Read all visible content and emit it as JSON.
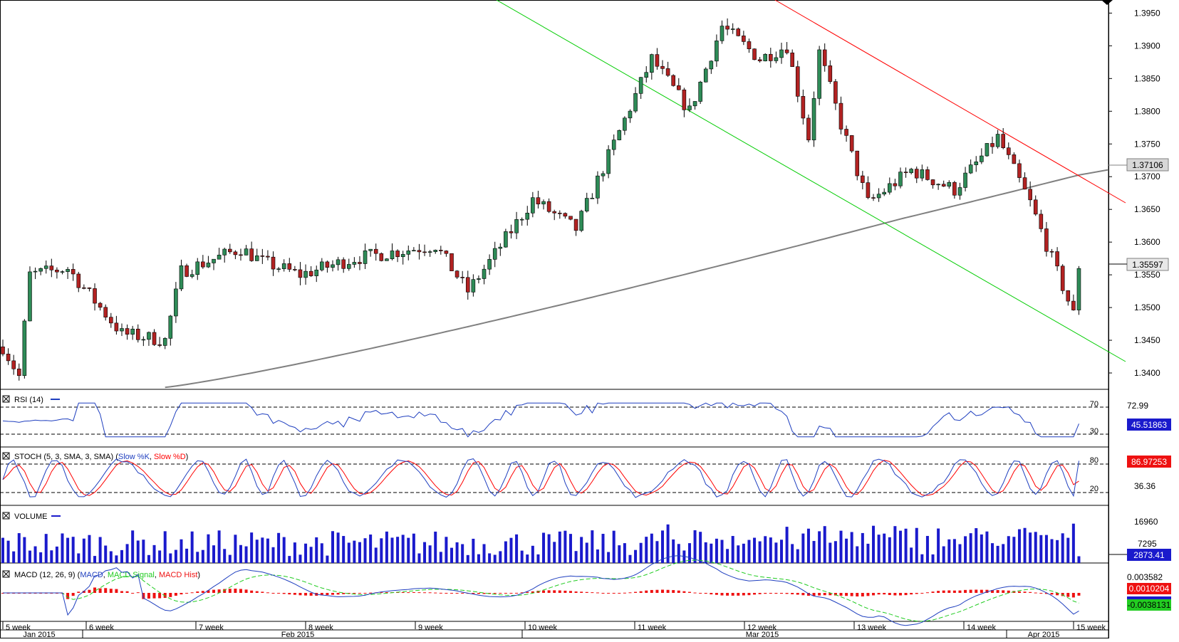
{
  "colors": {
    "bull": "#2e8b57",
    "bear": "#b22222",
    "grid": "#000000",
    "ma": "#808080",
    "support": "#00cc00",
    "resistance": "#ff0000",
    "rsi": "#1f3fbf",
    "stoch_k": "#1f3fbf",
    "stoch_d": "#ff0000",
    "volume": "#1a1acc",
    "macd": "#1f3fbf",
    "macd_signal": "#22cc22",
    "macd_hist": "#ee1111",
    "badge": "#1a1acc"
  },
  "price_panel": {
    "y_ticks": [
      "1.3950",
      "1.3900",
      "1.3850",
      "1.3800",
      "1.3750",
      "1.3700",
      "1.3650",
      "1.3600",
      "1.3550",
      "1.3500",
      "1.3450",
      "1.3400"
    ],
    "ma_label": "1.37106",
    "last_price_label": "1.35597"
  },
  "rsi_panel": {
    "title": "RSI (14)",
    "level_high": "70",
    "level_low": "30",
    "top_label": "72.99",
    "value_label": "45.51863"
  },
  "stoch_panel": {
    "title_prefix": "STOCH (5, 3, SMA, 3, SMA) (",
    "k_name": "Slow %K",
    "separator": ", ",
    "d_name": "Slow %D",
    "title_suffix": ")",
    "level_high": "80",
    "level_low": "20",
    "mid_label": "36.36",
    "value_label": "86.97253"
  },
  "volume_panel": {
    "title": "VOLUME",
    "top_label": "16960",
    "mid_label": "7295",
    "value_label": "2873.41"
  },
  "macd_panel": {
    "title_prefix": "MACD (12, 26, 9) (",
    "macd_name": "MACD",
    "separator": ", ",
    "signal_name": "MACD Signal",
    "hist_name": "MACD Hist",
    "title_suffix": ")",
    "top_label": "0.003582",
    "hist_label": "0.0010204",
    "value_label": "-0.0038131"
  },
  "x_axis": {
    "weeks": [
      "5 week",
      "6 week",
      "7 week",
      "8 week",
      "9 week",
      "10 week",
      "11 week",
      "12 week",
      "13 week",
      "14 week",
      "15 week"
    ],
    "months": [
      "Jan 2015",
      "Feb 2015",
      "Mar 2015",
      "Apr 2015"
    ]
  },
  "chart_data": {
    "type": "candlestick",
    "y_range": [
      1.3375,
      1.397
    ],
    "bars_count": 200,
    "open": 1.344,
    "close": 1.35597,
    "high": 1.395,
    "low": 1.3385,
    "anchors": [
      [
        0,
        1.344
      ],
      [
        3,
        1.3395
      ],
      [
        5,
        1.355
      ],
      [
        12,
        1.356
      ],
      [
        22,
        1.346
      ],
      [
        30,
        1.345
      ],
      [
        33,
        1.3555
      ],
      [
        44,
        1.359
      ],
      [
        48,
        1.357
      ],
      [
        55,
        1.355
      ],
      [
        65,
        1.3575
      ],
      [
        80,
        1.3595
      ],
      [
        86,
        1.3525
      ],
      [
        90,
        1.357
      ],
      [
        98,
        1.3665
      ],
      [
        106,
        1.362
      ],
      [
        113,
        1.375
      ],
      [
        120,
        1.388
      ],
      [
        127,
        1.38
      ],
      [
        133,
        1.393
      ],
      [
        140,
        1.388
      ],
      [
        145,
        1.39
      ],
      [
        149,
        1.376
      ],
      [
        151,
        1.389
      ],
      [
        155,
        1.378
      ],
      [
        160,
        1.366
      ],
      [
        168,
        1.371
      ],
      [
        176,
        1.368
      ],
      [
        184,
        1.376
      ],
      [
        190,
        1.366
      ],
      [
        198,
        1.349
      ],
      [
        203,
        1.356
      ]
    ],
    "ma_value": 1.37106,
    "last_price": 1.35597,
    "rsi": {
      "period": 14,
      "levels": [
        30,
        70
      ],
      "last": 45.51863
    },
    "stoch": {
      "params": [
        5,
        3,
        3
      ],
      "levels": [
        20,
        80
      ],
      "last": 86.97253
    },
    "volume": {
      "scale_max": 16960,
      "mid": 7295,
      "last": 2873.41
    },
    "macd": {
      "params": [
        12,
        26,
        9
      ],
      "last_macd": -0.0038131,
      "last_hist": 0.0010204,
      "scale_top": 0.003582
    }
  }
}
